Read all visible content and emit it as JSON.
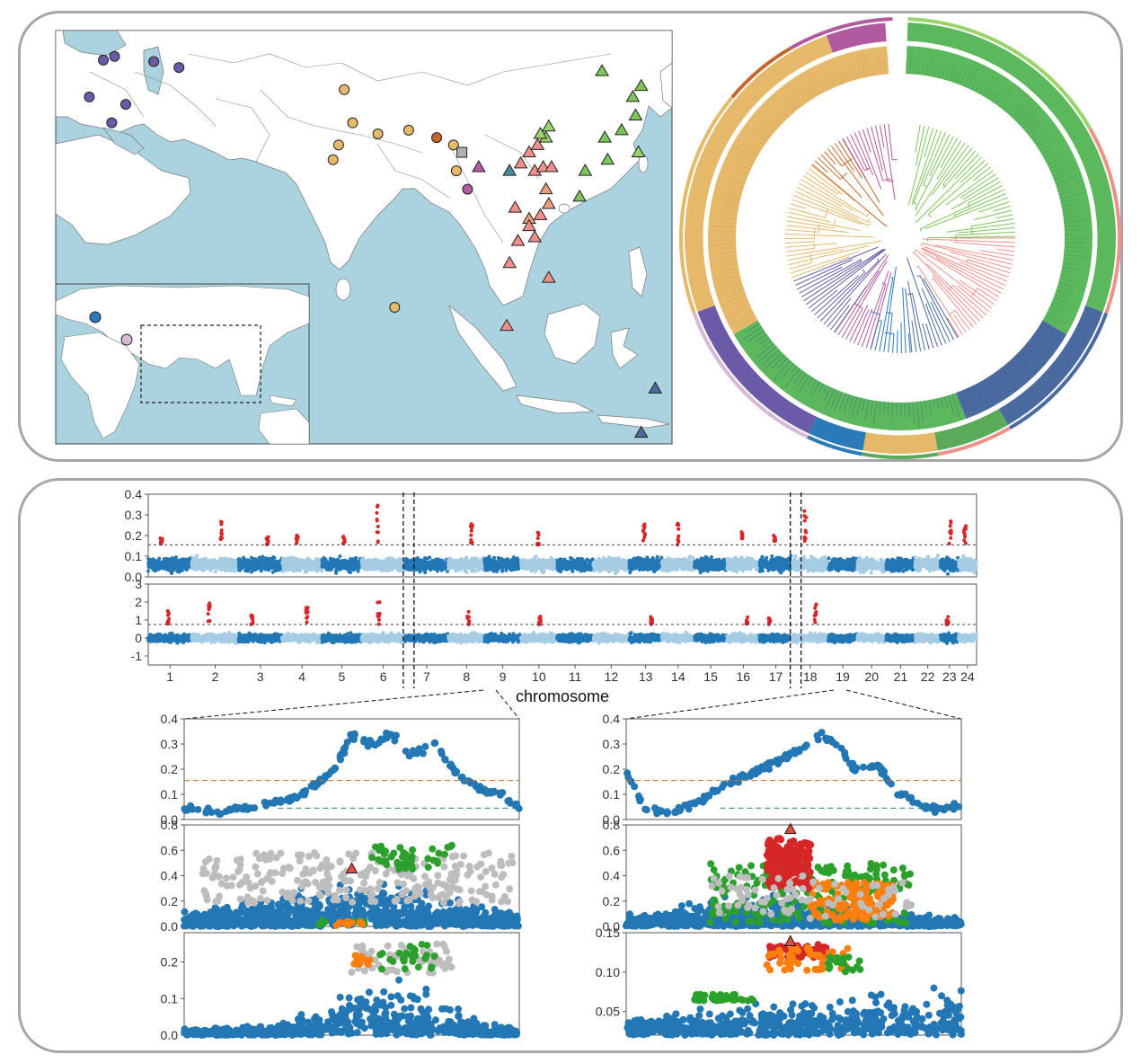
{
  "colors": {
    "ocean": "#aad3df",
    "dark_blue": "#2277b4",
    "light_blue": "#a6cce3",
    "red": "#d62728",
    "orange": "#ff7f0e",
    "green": "#2ca02c",
    "grey": "#bdbdbd",
    "threshold_orange": "#d2691e",
    "threshold_teal": "#2e7d8a"
  },
  "map": {
    "legend_symbols": [
      "circle",
      "square",
      "triangle"
    ],
    "samples": [
      {
        "shape": "circle",
        "color": "#6a5aa8",
        "lon": 28.5,
        "lat": 41.0
      },
      {
        "shape": "circle",
        "color": "#6a5aa8",
        "lon": 30.5,
        "lat": 41.5
      },
      {
        "shape": "circle",
        "color": "#6a5aa8",
        "lon": 37.5,
        "lat": 40.8
      },
      {
        "shape": "circle",
        "color": "#6a5aa8",
        "lon": 42.0,
        "lat": 40.0
      },
      {
        "shape": "circle",
        "color": "#6a5aa8",
        "lon": 26.0,
        "lat": 36.0
      },
      {
        "shape": "circle",
        "color": "#6a5aa8",
        "lon": 32.5,
        "lat": 35.0
      },
      {
        "shape": "circle",
        "color": "#6a5aa8",
        "lon": 30.0,
        "lat": 32.5
      },
      {
        "shape": "circle",
        "color": "#e6b96a",
        "lon": 71.5,
        "lat": 37.0
      },
      {
        "shape": "circle",
        "color": "#e6b96a",
        "lon": 73.0,
        "lat": 32.5
      },
      {
        "shape": "circle",
        "color": "#e6b96a",
        "lon": 77.5,
        "lat": 31.0
      },
      {
        "shape": "circle",
        "color": "#e6b96a",
        "lon": 70.5,
        "lat": 29.5
      },
      {
        "shape": "circle",
        "color": "#e6b96a",
        "lon": 69.5,
        "lat": 27.5
      },
      {
        "shape": "circle",
        "color": "#e6b96a",
        "lon": 83.0,
        "lat": 31.5
      },
      {
        "shape": "circle",
        "color": "#c5662a",
        "lon": 88.0,
        "lat": 30.5
      },
      {
        "shape": "circle",
        "color": "#e6b96a",
        "lon": 91.0,
        "lat": 29.5
      },
      {
        "shape": "square",
        "color": "#b0b0b0",
        "lon": 92.5,
        "lat": 28.5
      },
      {
        "shape": "circle",
        "color": "#e6b96a",
        "lon": 91.5,
        "lat": 26.0
      },
      {
        "shape": "circle",
        "color": "#b05aa0",
        "lon": 93.5,
        "lat": 23.5
      },
      {
        "shape": "triangle",
        "color": "#b05aa0",
        "lon": 95.5,
        "lat": 26.5
      },
      {
        "shape": "circle",
        "color": "#e6b96a",
        "lon": 80.5,
        "lat": 7.5
      },
      {
        "shape": "triangle",
        "color": "#4e8aa0",
        "lon": 101.0,
        "lat": 26.0
      },
      {
        "shape": "triangle",
        "color": "#f0908a",
        "lon": 104.5,
        "lat": 28.5
      },
      {
        "shape": "triangle",
        "color": "#f0908a",
        "lon": 106.0,
        "lat": 29.5
      },
      {
        "shape": "triangle",
        "color": "#9bd46a",
        "lon": 107.5,
        "lat": 30.5
      },
      {
        "shape": "triangle",
        "color": "#9bd46a",
        "lon": 108.0,
        "lat": 32.0
      },
      {
        "shape": "triangle",
        "color": "#9bd46a",
        "lon": 106.5,
        "lat": 31.0
      },
      {
        "shape": "triangle",
        "color": "#f0908a",
        "lon": 105.5,
        "lat": 26.0
      },
      {
        "shape": "triangle",
        "color": "#f0908a",
        "lon": 107.0,
        "lat": 26.5
      },
      {
        "shape": "triangle",
        "color": "#f0908a",
        "lon": 108.5,
        "lat": 26.5
      },
      {
        "shape": "triangle",
        "color": "#f0908a",
        "lon": 103.0,
        "lat": 27.0
      },
      {
        "shape": "triangle",
        "color": "#e8a07a",
        "lon": 107.5,
        "lat": 23.5
      },
      {
        "shape": "triangle",
        "color": "#e8a07a",
        "lon": 108.0,
        "lat": 21.5
      },
      {
        "shape": "triangle",
        "color": "#f0908a",
        "lon": 102.0,
        "lat": 21.0
      },
      {
        "shape": "triangle",
        "color": "#e8a07a",
        "lon": 104.5,
        "lat": 19.5
      },
      {
        "shape": "triangle",
        "color": "#f0908a",
        "lon": 106.5,
        "lat": 20.0
      },
      {
        "shape": "triangle",
        "color": "#f0908a",
        "lon": 104.5,
        "lat": 18.5
      },
      {
        "shape": "triangle",
        "color": "#f0908a",
        "lon": 102.5,
        "lat": 16.5
      },
      {
        "shape": "triangle",
        "color": "#f0908a",
        "lon": 105.5,
        "lat": 17.0
      },
      {
        "shape": "triangle",
        "color": "#f0908a",
        "lon": 101.0,
        "lat": 13.5
      },
      {
        "shape": "triangle",
        "color": "#f0908a",
        "lon": 108.0,
        "lat": 11.5
      },
      {
        "shape": "triangle",
        "color": "#f0908a",
        "lon": 100.5,
        "lat": 5.0
      },
      {
        "shape": "triangle",
        "color": "#7ec45a",
        "lon": 114.5,
        "lat": 26.0
      },
      {
        "shape": "triangle",
        "color": "#7ec45a",
        "lon": 118.5,
        "lat": 27.5
      },
      {
        "shape": "triangle",
        "color": "#7ec45a",
        "lon": 113.5,
        "lat": 22.5
      },
      {
        "shape": "triangle",
        "color": "#7ec45a",
        "lon": 118.0,
        "lat": 30.5
      },
      {
        "shape": "triangle",
        "color": "#7ec45a",
        "lon": 121.0,
        "lat": 31.5
      },
      {
        "shape": "triangle",
        "color": "#7ec45a",
        "lon": 123.5,
        "lat": 33.5
      },
      {
        "shape": "triangle",
        "color": "#7ec45a",
        "lon": 124.5,
        "lat": 37.5
      },
      {
        "shape": "triangle",
        "color": "#7ec45a",
        "lon": 123.0,
        "lat": 36.0
      },
      {
        "shape": "triangle",
        "color": "#7ec45a",
        "lon": 117.5,
        "lat": 39.5
      },
      {
        "shape": "triangle",
        "color": "#9bd46a",
        "lon": 124.0,
        "lat": 28.5
      },
      {
        "shape": "triangle",
        "color": "#4a6aa0",
        "lon": 127.0,
        "lat": -3.5
      },
      {
        "shape": "triangle",
        "color": "#4a6aa0",
        "lon": 124.5,
        "lat": -9.5
      }
    ],
    "inset_samples": [
      {
        "shape": "circle",
        "color": "#2a7ab8",
        "label": "inset-blue"
      },
      {
        "shape": "circle",
        "color": "#d8b8d8",
        "label": "inset-pink"
      }
    ]
  },
  "chart_data": [
    {
      "type": "scatter",
      "panel": "genome-scan-top",
      "xlabel": "chromosome",
      "ylabel": "",
      "ylim": [
        0,
        0.4
      ],
      "yticks": [
        "0.4",
        "0.3",
        "0.2",
        "0.1",
        "0.0"
      ],
      "threshold": 0.155,
      "chromosomes": [
        "1",
        "2",
        "3",
        "4",
        "5",
        "6",
        "7",
        "8",
        "9",
        "10",
        "11",
        "12",
        "13",
        "14",
        "15",
        "16",
        "17",
        "18",
        "19",
        "20",
        "21",
        "22",
        "23",
        "24"
      ],
      "chromosome_lengths": [
        1.2,
        1.3,
        1.2,
        1.1,
        1.1,
        1.2,
        1.2,
        1.0,
        1.0,
        1.0,
        1.0,
        1.0,
        0.9,
        0.9,
        0.9,
        0.9,
        0.9,
        1.0,
        0.8,
        0.8,
        0.8,
        0.7,
        0.5,
        0.5
      ],
      "background_level": 0.06,
      "peaks": [
        {
          "chrom": "1",
          "value": 0.19
        },
        {
          "chrom": "2",
          "value": 0.27
        },
        {
          "chrom": "3",
          "value": 0.2
        },
        {
          "chrom": "4",
          "value": 0.2
        },
        {
          "chrom": "5",
          "value": 0.2
        },
        {
          "chrom": "6",
          "value": 0.35
        },
        {
          "chrom": "8",
          "value": 0.26
        },
        {
          "chrom": "10",
          "value": 0.22
        },
        {
          "chrom": "13",
          "value": 0.27
        },
        {
          "chrom": "14",
          "value": 0.28
        },
        {
          "chrom": "16",
          "value": 0.22
        },
        {
          "chrom": "17",
          "value": 0.2
        },
        {
          "chrom": "18",
          "value": 0.35
        },
        {
          "chrom": "23",
          "value": 0.27
        },
        {
          "chrom": "24",
          "value": 0.26
        }
      ]
    },
    {
      "type": "scatter",
      "panel": "genome-scan-bottom",
      "xlabel": "chromosome",
      "ylabel": "",
      "ylim": [
        -1.5,
        3
      ],
      "yticks": [
        "3",
        "2",
        "1",
        "0",
        "-1"
      ],
      "threshold": 0.75,
      "peaks": [
        {
          "chrom": "1",
          "value": 1.5
        },
        {
          "chrom": "2",
          "value": 2.1
        },
        {
          "chrom": "3",
          "value": 1.3
        },
        {
          "chrom": "4",
          "value": 1.7
        },
        {
          "chrom": "6",
          "value": 2.0
        },
        {
          "chrom": "8",
          "value": 1.5
        },
        {
          "chrom": "10",
          "value": 1.2
        },
        {
          "chrom": "13",
          "value": 1.2
        },
        {
          "chrom": "16",
          "value": 1.2
        },
        {
          "chrom": "17",
          "value": 1.1
        },
        {
          "chrom": "18",
          "value": 1.9
        },
        {
          "chrom": "23",
          "value": 1.2
        }
      ]
    },
    {
      "type": "scatter",
      "panel": "zoom-left-1",
      "ylim": [
        0,
        0.4
      ],
      "yticks": [
        "0.4",
        "0.3",
        "0.2",
        "0.1",
        "0.0"
      ],
      "thresholds": [
        0.155,
        0.045
      ],
      "curve": [
        [
          0,
          0.05
        ],
        [
          0.1,
          0.03
        ],
        [
          0.2,
          0.05
        ],
        [
          0.3,
          0.07
        ],
        [
          0.38,
          0.13
        ],
        [
          0.45,
          0.2
        ],
        [
          0.5,
          0.33
        ],
        [
          0.56,
          0.3
        ],
        [
          0.62,
          0.34
        ],
        [
          0.68,
          0.26
        ],
        [
          0.75,
          0.3
        ],
        [
          0.8,
          0.2
        ],
        [
          0.88,
          0.12
        ],
        [
          0.95,
          0.1
        ],
        [
          1,
          0.05
        ]
      ]
    },
    {
      "type": "scatter",
      "panel": "zoom-left-2",
      "ylim": [
        0,
        0.8
      ],
      "yticks": [
        "0.8",
        "0.6",
        "0.4",
        "0.2",
        "0.0"
      ]
    },
    {
      "type": "scatter",
      "panel": "zoom-left-3",
      "ylim": [
        0,
        0.28
      ],
      "yticks": [
        "0.2",
        "0.1",
        "0.0"
      ]
    },
    {
      "type": "scatter",
      "panel": "zoom-right-1",
      "ylim": [
        0,
        0.4
      ],
      "yticks": [
        "0.4",
        "0.3",
        "0.2",
        "0.1",
        "0.0"
      ],
      "thresholds": [
        0.155,
        0.045
      ],
      "curve": [
        [
          0,
          0.2
        ],
        [
          0.05,
          0.05
        ],
        [
          0.12,
          0.02
        ],
        [
          0.2,
          0.06
        ],
        [
          0.3,
          0.14
        ],
        [
          0.4,
          0.2
        ],
        [
          0.5,
          0.26
        ],
        [
          0.58,
          0.34
        ],
        [
          0.63,
          0.3
        ],
        [
          0.68,
          0.2
        ],
        [
          0.75,
          0.22
        ],
        [
          0.8,
          0.12
        ],
        [
          0.85,
          0.08
        ],
        [
          0.92,
          0.04
        ],
        [
          1,
          0.05
        ]
      ]
    },
    {
      "type": "scatter",
      "panel": "zoom-right-2",
      "ylim": [
        0,
        0.8
      ],
      "yticks": [
        "0.8",
        "0.6",
        "0.4",
        "0.2",
        "0.0"
      ]
    },
    {
      "type": "scatter",
      "panel": "zoom-right-3",
      "ylim": [
        0.02,
        0.15
      ],
      "yticks": [
        "0.15",
        "0.10",
        "0.05"
      ]
    }
  ]
}
